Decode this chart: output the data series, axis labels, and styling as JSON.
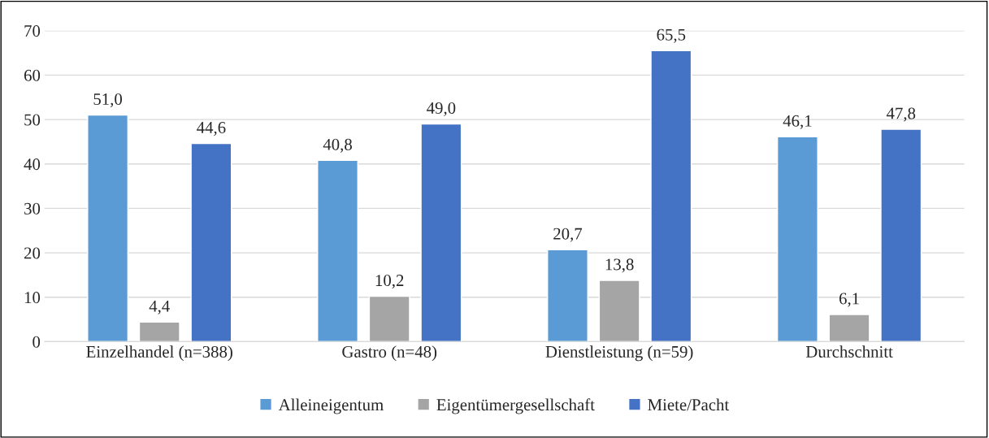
{
  "chart_data": {
    "type": "bar",
    "categories": [
      "Einzelhandel (n=388)",
      "Gastro (n=48)",
      "Dienstleistung (n=59)",
      "Durchschnitt"
    ],
    "series": [
      {
        "name": "Alleineigentum",
        "color": "#5b9bd5",
        "values": [
          51.0,
          40.8,
          20.7,
          46.1
        ],
        "value_labels": [
          "51,0",
          "40,8",
          "20,7",
          "46,1"
        ]
      },
      {
        "name": "Eigentümergesellschaft",
        "color": "#a5a5a5",
        "values": [
          4.4,
          10.2,
          13.8,
          6.1
        ],
        "value_labels": [
          "4,4",
          "10,2",
          "13,8",
          "6,1"
        ]
      },
      {
        "name": "Miete/Pacht",
        "color": "#4472c4",
        "values": [
          44.6,
          49.0,
          65.5,
          47.8
        ],
        "value_labels": [
          "44,6",
          "49,0",
          "65,5",
          "47,8"
        ]
      }
    ],
    "ylim": [
      0,
      70
    ],
    "yticks": [
      0,
      10,
      20,
      30,
      40,
      50,
      60,
      70
    ],
    "grid": "y",
    "legend": "bottom"
  }
}
